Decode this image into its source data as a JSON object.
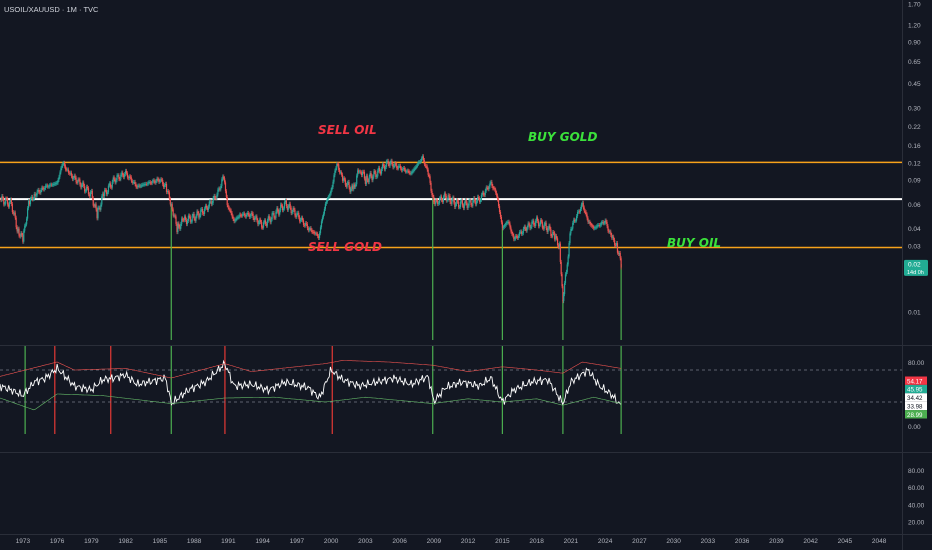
{
  "symbol": "USOIL/XAUUSD · 1M · TVC",
  "chart_data": [
    {
      "type": "line",
      "title": "USOIL/XAUUSD · 1M · TVC",
      "y_scale": "log",
      "ylim": [
        0.0062,
        1.8
      ],
      "xlim": [
        1971.0,
        2050.0
      ],
      "y_ticks": [
        "1.70",
        "1.20",
        "0.90",
        "0.65",
        "0.45",
        "0.30",
        "0.22",
        "0.16",
        "0.12",
        "0.09",
        "0.06",
        "0.04",
        "0.03",
        "0.01"
      ],
      "x_ticks": [
        "1973",
        "1976",
        "1979",
        "1982",
        "1985",
        "1988",
        "1991",
        "1994",
        "1997",
        "2000",
        "2003",
        "2006",
        "2009",
        "2012",
        "2015",
        "2018",
        "2021",
        "2024",
        "2027",
        "2030",
        "2033",
        "2036",
        "2039",
        "2042",
        "2045",
        "2048"
      ],
      "series": [
        {
          "x": [
            1971.0,
            1972.0,
            1972.5,
            1973.0,
            1973.5,
            1974.0,
            1975.0,
            1976.0,
            1976.5,
            1977.0,
            1978.0,
            1979.0,
            1979.5,
            1980.0,
            1981.0,
            1982.0,
            1983.0,
            1984.0,
            1985.0,
            1985.5,
            1986.0,
            1986.5,
            1987.0,
            1988.0,
            1989.0,
            1990.0,
            1990.6,
            1990.9,
            1991.5,
            1992.0,
            1993.0,
            1994.0,
            1995.0,
            1996.0,
            1997.0,
            1998.0,
            1998.9,
            1999.5,
            2000.0,
            2000.5,
            2001.0,
            2001.9,
            2002.5,
            2003.0,
            2004.0,
            2005.0,
            2006.0,
            2007.0,
            2008.0,
            2008.5,
            2009.0,
            2010.0,
            2011.0,
            2012.0,
            2013.0,
            2014.0,
            2014.5,
            2015.0,
            2015.5,
            2016.0,
            2017.0,
            2018.0,
            2019.0,
            2019.5,
            2020.0,
            2020.3,
            2020.6,
            2021.0,
            2022.0,
            2022.5,
            2023.0,
            2024.0,
            2024.5,
            2025.0,
            2025.4
          ],
          "y": [
            0.065,
            0.06,
            0.04,
            0.033,
            0.06,
            0.07,
            0.08,
            0.085,
            0.12,
            0.1,
            0.085,
            0.07,
            0.05,
            0.068,
            0.09,
            0.1,
            0.08,
            0.085,
            0.09,
            0.08,
            0.06,
            0.04,
            0.045,
            0.048,
            0.055,
            0.07,
            0.095,
            0.06,
            0.045,
            0.05,
            0.05,
            0.042,
            0.05,
            0.06,
            0.05,
            0.04,
            0.035,
            0.06,
            0.075,
            0.12,
            0.09,
            0.075,
            0.11,
            0.09,
            0.1,
            0.12,
            0.11,
            0.1,
            0.13,
            0.1,
            0.06,
            0.068,
            0.06,
            0.06,
            0.065,
            0.085,
            0.07,
            0.04,
            0.045,
            0.033,
            0.04,
            0.045,
            0.04,
            0.035,
            0.03,
            0.012,
            0.02,
            0.04,
            0.06,
            0.045,
            0.04,
            0.045,
            0.035,
            0.03,
            0.022
          ]
        }
      ],
      "horizontal_levels": [
        0.12,
        0.065,
        0.029
      ],
      "signal_dates_green": [
        1986.0,
        2008.9,
        2015.0,
        2020.3,
        2025.4
      ],
      "signal_dates_red": [
        1975.8,
        1980.7,
        1990.7,
        2000.1
      ],
      "last_price": "0.02",
      "countdown": "14d 0h",
      "colors": {
        "background": "#131722",
        "level_orange": "#f7a21b",
        "level_white": "#ffffff",
        "up": "#26a69a",
        "down": "#ef5350",
        "sell_text": "#f23645",
        "buy_text": "#3be13b",
        "green_line": "#4caf50",
        "red_line": "#e53935"
      }
    },
    {
      "type": "line",
      "title": "",
      "ylim": [
        -10,
        100
      ],
      "y_ticks": [
        "80.00",
        "60.00",
        "40.00",
        "20.00",
        "0.00"
      ],
      "levels": [
        70,
        30
      ],
      "series": [
        {
          "color": "#ffffff",
          "x": [
            1971.0,
            1972.0,
            1973.0,
            1974.0,
            1975.0,
            1976.0,
            1976.5,
            1977.5,
            1979.0,
            1980.0,
            1981.0,
            1982.0,
            1983.0,
            1984.0,
            1985.5,
            1986.0,
            1987.5,
            1989.0,
            1990.7,
            1991.5,
            1993.0,
            1994.5,
            1996.0,
            1998.0,
            1999.0,
            2000.0,
            2001.0,
            2002.5,
            2004.0,
            2005.5,
            2007.0,
            2008.5,
            2009.0,
            2010.0,
            2011.5,
            2013.0,
            2014.0,
            2015.0,
            2016.0,
            2017.5,
            2019.0,
            2020.3,
            2021.0,
            2022.5,
            2023.5,
            2024.5,
            2025.4
          ],
          "y": [
            50,
            45,
            38,
            55,
            60,
            72,
            65,
            50,
            45,
            58,
            60,
            64,
            52,
            55,
            60,
            28,
            45,
            55,
            78,
            50,
            52,
            45,
            55,
            48,
            35,
            70,
            58,
            50,
            55,
            60,
            52,
            62,
            30,
            48,
            55,
            50,
            60,
            30,
            45,
            55,
            58,
            28,
            55,
            70,
            50,
            40,
            25
          ]
        },
        {
          "color": "#ef5350",
          "x": [
            1971.0,
            1976.0,
            1977.5,
            1982.0,
            1986.0,
            1990.7,
            1993.0,
            1999.5,
            2001.0,
            2005.0,
            2008.9,
            2012.0,
            2015.0,
            2018.0,
            2020.3,
            2022.0,
            2025.4
          ],
          "y": [
            62,
            80,
            70,
            72,
            60,
            78,
            68,
            78,
            82,
            80,
            76,
            68,
            74,
            70,
            66,
            80,
            72
          ]
        },
        {
          "color": "#66bb6a",
          "x": [
            1971.0,
            1974.0,
            1976.0,
            1980.0,
            1986.0,
            1990.7,
            1995.0,
            1999.5,
            2003.0,
            2008.9,
            2012.0,
            2015.0,
            2018.0,
            2020.3,
            2023.0,
            2025.4
          ],
          "y": [
            35,
            20,
            40,
            38,
            28,
            35,
            36,
            30,
            36,
            28,
            34,
            30,
            34,
            26,
            36,
            28
          ]
        }
      ],
      "labels": [
        {
          "text": "54.17",
          "value": 54.17,
          "bg": "#f23645"
        },
        {
          "text": "45.95",
          "value": 45.95,
          "bg": "#22ab94"
        },
        {
          "text": "34.42",
          "value": 34.42,
          "bg": "#ffffff"
        },
        {
          "text": "33.98",
          "value": 33.98,
          "bg": "#ffffff"
        },
        {
          "text": "28.99",
          "value": 28.99,
          "bg": "#4caf50"
        }
      ]
    },
    {
      "type": "line",
      "title": "",
      "ylim": [
        10,
        100
      ],
      "y_ticks": [
        "80.00",
        "60.00",
        "40.00",
        "20.00"
      ],
      "series": []
    }
  ],
  "annotations": {
    "sell_oil": "SELL OIL",
    "buy_gold": "BUY GOLD",
    "sell_gold": "SELL GOLD",
    "buy_oil": "BUY OIL"
  }
}
